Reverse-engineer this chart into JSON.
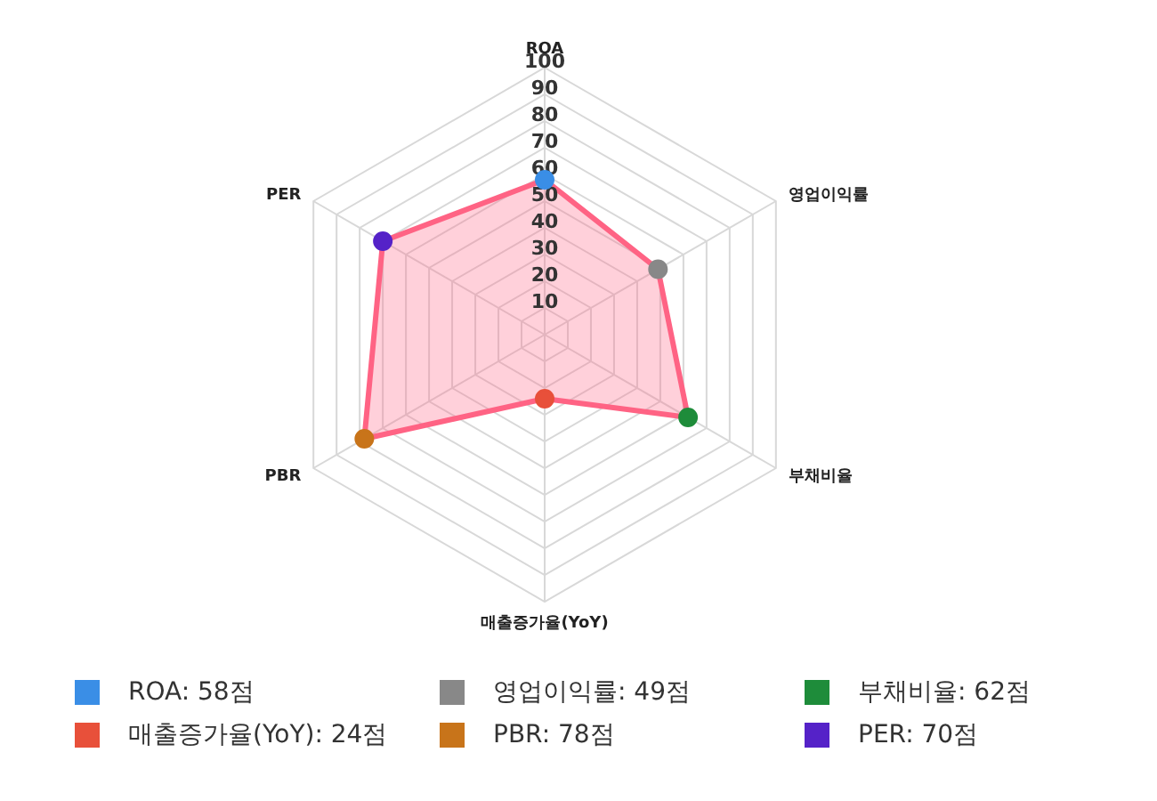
{
  "chart_data": {
    "type": "radar",
    "categories": [
      "ROA",
      "영업이익률",
      "부채비율",
      "매출증가율(YoY)",
      "PBR",
      "PER"
    ],
    "series": [
      {
        "color": "#ff6384",
        "values": [
          58,
          49,
          62,
          24,
          78,
          70
        ]
      }
    ],
    "colors": [
      "#3a8ee6",
      "#888888",
      "#1e8c3a",
      "#e8503a",
      "#c8741a",
      "#5522c8"
    ],
    "value_labels": [
      "ROA: 58점",
      "영업이익률: 49점",
      "부채비율: 62점",
      "매출증가율(YoY): 24점",
      "PBR: 78점",
      "PER: 70점"
    ],
    "ylim": [
      0,
      100
    ],
    "yticks": [
      10,
      20,
      30,
      40,
      50,
      60,
      70,
      80,
      90,
      100
    ],
    "grid": true,
    "marker": "circle"
  }
}
